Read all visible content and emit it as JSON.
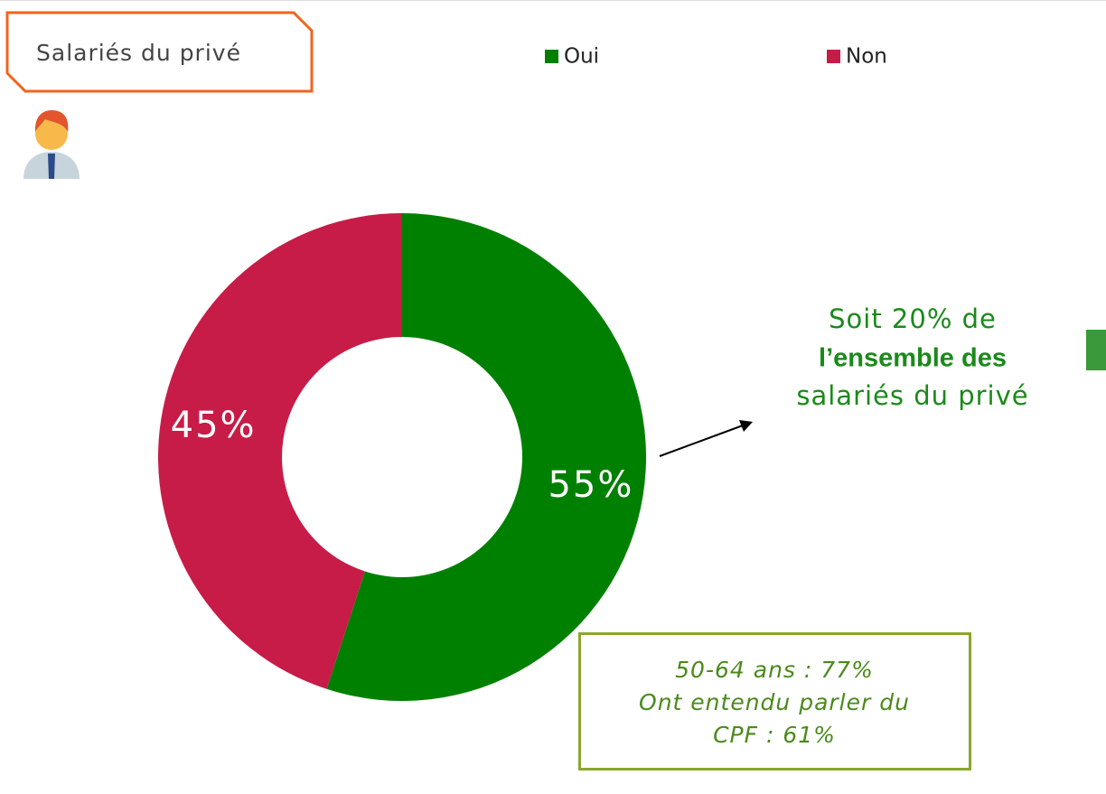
{
  "chart_data": {
    "type": "pie",
    "donut": true,
    "title": "Salariés du privé",
    "categories": [
      "Oui",
      "Non"
    ],
    "values": [
      55,
      45
    ],
    "value_labels": [
      "55%",
      "45%"
    ],
    "colors": [
      "#008000",
      "#c71c47"
    ],
    "legend": "top",
    "annotation": [
      "Soit 20% de",
      "l’ensemble des",
      "salariés du privé"
    ],
    "note": [
      "50-64 ans : 77%",
      "Ont entendu parler du",
      "CPF : 61%"
    ]
  }
}
